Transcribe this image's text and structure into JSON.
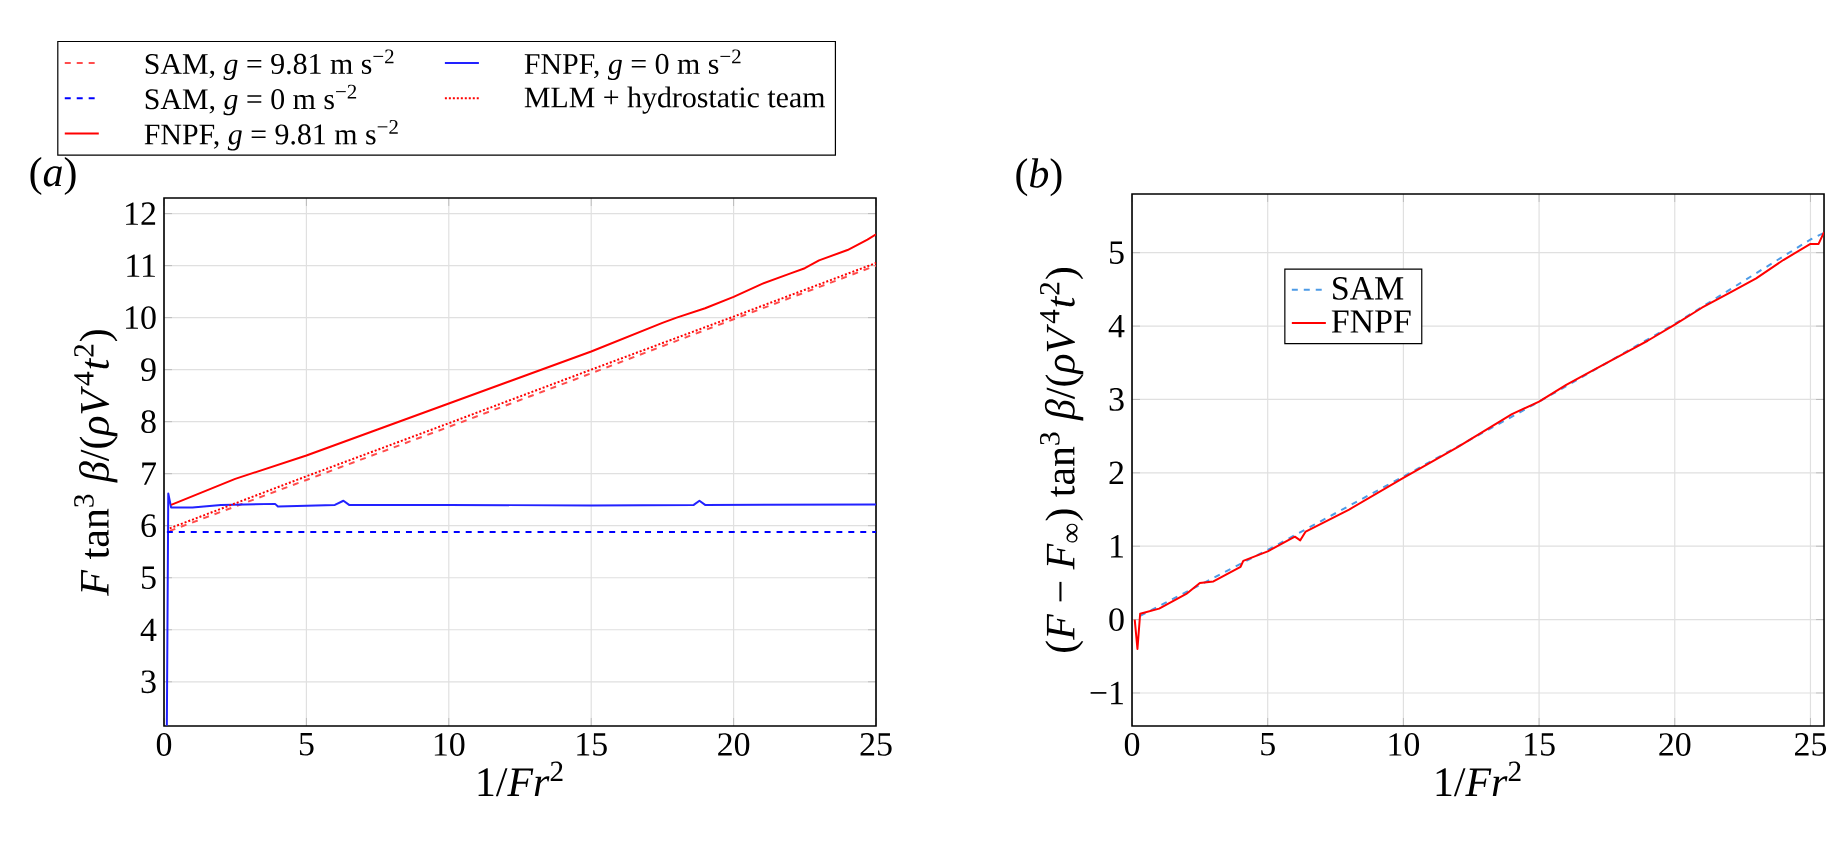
{
  "chart_data": [
    {
      "type": "line",
      "title": "(*a*)",
      "xlabel": "1/*Fr*$^{2}$",
      "ylabel": "*F* tan$^{3}$ *β*/(*ρV*$^{4}$*t*$^{2}$)",
      "xlim": [
        0,
        25
      ],
      "ylim": [
        2.15,
        12.3
      ],
      "xticks": [
        0,
        5,
        10,
        15,
        20,
        25
      ],
      "yticks": [
        3,
        4,
        5,
        6,
        7,
        8,
        9,
        10,
        11,
        12
      ],
      "grid": true,
      "legend": "top",
      "series": [
        {
          "name": "SAM, *g* = 9.81 m s$^{−2}$",
          "color": "#ff4d4d",
          "line_style": "dashed",
          "x": [
            0.2,
            5,
            10,
            15,
            20,
            25
          ],
          "values": [
            5.9,
            6.88,
            7.9,
            8.93,
            9.97,
            11.0
          ]
        },
        {
          "name": "SAM, *g* = 0 m s$^{−2}$",
          "color": "#0000ff",
          "line_style": "dashed",
          "x": [
            0.1,
            25
          ],
          "values": [
            5.88,
            5.88
          ]
        },
        {
          "name": "FNPF, *g* = 9.81 m s$^{−2}$",
          "color": "#ff0000",
          "line_style": "solid",
          "x": [
            0.25,
            2.5,
            5,
            7.5,
            10,
            12.5,
            15,
            17.5,
            18,
            19,
            20,
            21,
            22,
            22.5,
            23,
            24,
            24.7,
            25
          ],
          "values": [
            6.4,
            6.9,
            7.35,
            7.85,
            8.35,
            8.85,
            9.35,
            9.9,
            10.0,
            10.18,
            10.4,
            10.65,
            10.85,
            10.95,
            11.1,
            11.3,
            11.5,
            11.6
          ]
        },
        {
          "name": "FNPF, *g* = 0 m s$^{−2}$",
          "color": "#2222ff",
          "line_style": "solid",
          "x": [
            0.1,
            0.15,
            0.25,
            1,
            2,
            3.9,
            4.0,
            6.0,
            6.3,
            6.5,
            10,
            15,
            18.6,
            18.8,
            19,
            25
          ],
          "values": [
            2.16,
            6.62,
            6.35,
            6.35,
            6.4,
            6.42,
            6.37,
            6.4,
            6.48,
            6.4,
            6.4,
            6.39,
            6.4,
            6.48,
            6.4,
            6.41
          ]
        },
        {
          "name": "MLM + hydrostatic team",
          "color": "#ff0000",
          "line_style": "dotted",
          "x": [
            0.2,
            5,
            10,
            15,
            20,
            25
          ],
          "values": [
            5.95,
            6.95,
            7.97,
            9.0,
            10.02,
            11.05
          ]
        }
      ]
    },
    {
      "type": "line",
      "title": "(*b*)",
      "xlabel": "1/*Fr*$^{2}$",
      "ylabel": "(*F* − *F*$_{∞}$) tan$^{3}$ *β*/(*ρV*$^{4}$*t*$^{2}$)",
      "xlim": [
        0,
        25.5
      ],
      "ylim": [
        -1.45,
        5.8
      ],
      "xticks": [
        0,
        5,
        10,
        15,
        20,
        25
      ],
      "yticks": [
        {
          "value": -1,
          "label": "−1"
        },
        0,
        1,
        2,
        3,
        4,
        5
      ],
      "grid": true,
      "legend": "top left",
      "series": [
        {
          "name": "SAM",
          "color": "#4d9be6",
          "line_style": "dashed",
          "x": [
            0.3,
            5,
            10,
            15,
            20,
            25,
            25.5
          ],
          "values": [
            0.05,
            0.95,
            1.95,
            2.97,
            4.03,
            5.18,
            5.27
          ]
        },
        {
          "name": "FNPF",
          "color": "#ff0000",
          "line_style": "solid",
          "x": [
            0.1,
            0.2,
            0.3,
            1,
            2,
            2.5,
            3,
            4,
            4.1,
            5,
            6,
            6.2,
            6.4,
            8,
            10,
            12,
            14,
            15,
            16,
            17,
            18,
            18.5,
            19,
            20,
            21,
            22,
            23,
            24,
            25,
            25.3,
            25.5
          ],
          "values": [
            0,
            -0.4,
            0.08,
            0.15,
            0.35,
            0.5,
            0.52,
            0.72,
            0.8,
            0.93,
            1.13,
            1.08,
            1.2,
            1.5,
            1.93,
            2.35,
            2.8,
            2.97,
            3.2,
            3.4,
            3.6,
            3.7,
            3.8,
            4.02,
            4.25,
            4.45,
            4.65,
            4.9,
            5.12,
            5.12,
            5.28
          ]
        }
      ]
    }
  ]
}
